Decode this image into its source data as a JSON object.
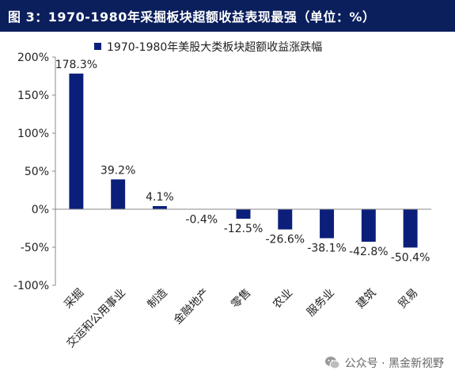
{
  "figure": {
    "title": "图 3：1970-1980年采掘板块超额收益表现最强（单位：%）",
    "watermark": "公众号 · 黑金新视野",
    "watermark_icon": "wechat-icon"
  },
  "chart_data": {
    "type": "bar",
    "categories": [
      "采掘",
      "交运和公用事业",
      "制造",
      "金融地产",
      "零售",
      "农业",
      "服务业",
      "建筑",
      "贸易"
    ],
    "series": [
      {
        "name": "1970-1980年美股大类板块超额收益涨跌幅",
        "values": [
          178.3,
          39.2,
          4.1,
          -0.4,
          -12.5,
          -26.6,
          -38.1,
          -42.8,
          -50.4
        ],
        "labels": [
          "178.3%",
          "39.2%",
          "4.1%",
          "-0.4%",
          "-12.5%",
          "-26.6%",
          "-38.1%",
          "-42.8%",
          "-50.4%"
        ],
        "color": "#0b1f7a"
      }
    ],
    "y_ticks": [
      200,
      150,
      100,
      50,
      0,
      -50,
      -100
    ],
    "y_tick_labels": [
      "200%",
      "150%",
      "100%",
      "50%",
      "0%",
      "-50%",
      "-100%"
    ],
    "ylim": [
      -100,
      200
    ],
    "grid": false,
    "legend_position": "top"
  }
}
